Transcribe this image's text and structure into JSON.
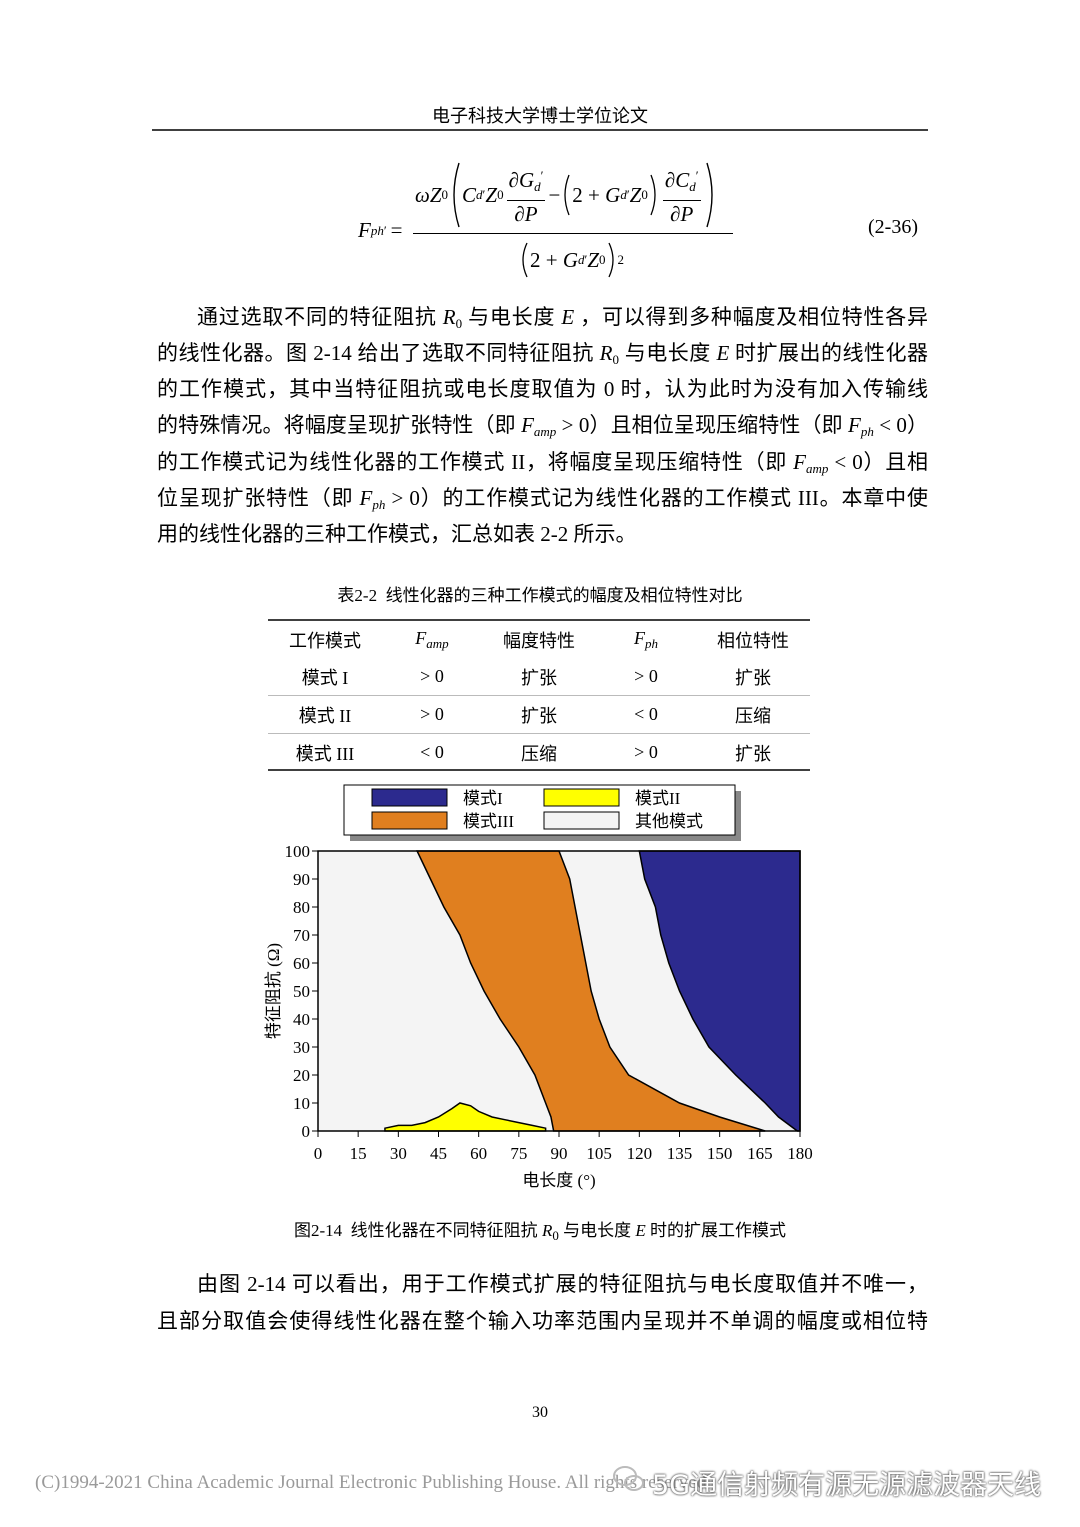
{
  "header": {
    "title": "电子科技大学博士学位论文"
  },
  "equation": {
    "lhs": [
      "F",
      "ph",
      "′",
      "="
    ],
    "numerator": [
      "ωZ",
      "0",
      "C",
      "d",
      "′",
      "Z",
      "0",
      "∂G",
      "d",
      "′",
      "∂P",
      "−",
      "2 + ",
      "G",
      "d",
      "′",
      "Z",
      "0",
      "∂C",
      "d",
      "′",
      "∂P"
    ],
    "denominator": [
      "2 + ",
      "G",
      "d",
      "′",
      "Z",
      "0",
      "2"
    ],
    "label": "(2-36)"
  },
  "paragraph_1": [
    [
      "通过选取不同的特征阻抗 ",
      "R",
      "0",
      " 与电长度 ",
      "E",
      " ，可以得到多种幅度及相位特性各异"
    ],
    [
      "的线性化器。图 2-14 给出了选取不同特征阻抗 ",
      "R",
      "0",
      " 与电长度 ",
      "E",
      " 时扩展出的线性化器"
    ],
    [
      "的工作模式，其中当特征阻抗或电长度取值为 0 时，认为此时为没有加入传输线"
    ],
    [
      "的特殊情况。将幅度呈现扩张特性（即 ",
      "F",
      "amp",
      " > 0）且相位呈现压缩特性（即 ",
      "F",
      "ph",
      " < 0）"
    ],
    [
      "的工作模式记为线性化器的工作模式 II，将幅度呈现压缩特性（即 ",
      "F",
      "amp",
      " < 0）且相"
    ],
    [
      "位呈现扩张特性（即 ",
      "F",
      "ph",
      " > 0）的工作模式记为线性化器的工作模式 III。本章中使"
    ],
    [
      "用的线性化器的三种工作模式，汇总如表 2-2 所示。"
    ]
  ],
  "table": {
    "caption": "表2-2  线性化器的三种工作模式的幅度及相位特性对比",
    "header": [
      "工作模式",
      [
        "F",
        "amp"
      ],
      "幅度特性",
      [
        "F",
        "ph"
      ],
      "相位特性"
    ],
    "rows": [
      [
        "模式 I",
        "> 0",
        "扩张",
        "> 0",
        "扩张"
      ],
      [
        "模式 II",
        "> 0",
        "扩张",
        "< 0",
        "压缩"
      ],
      [
        "模式 III",
        "< 0",
        "压缩",
        "> 0",
        "扩张"
      ]
    ]
  },
  "chart_data": {
    "type": "region-map",
    "x_label": "电长度 (°)",
    "y_label": "特征阻抗 (Ω)",
    "xlim": [
      0,
      180
    ],
    "ylim": [
      0,
      100
    ],
    "xticks": [
      0,
      15,
      30,
      45,
      60,
      75,
      90,
      105,
      120,
      135,
      150,
      165,
      180
    ],
    "yticks": [
      0,
      10,
      20,
      30,
      40,
      50,
      60,
      70,
      80,
      90,
      100
    ],
    "y_levels": [
      0,
      5,
      10,
      20,
      30,
      40,
      50,
      60,
      70,
      80,
      90,
      100
    ],
    "series": [
      {
        "name": "模式I",
        "color": "#2c2a8e",
        "x_left": [
          179,
          172,
          167,
          156,
          146,
          140,
          135,
          131,
          128,
          126,
          122,
          120
        ]
      },
      {
        "name": "模式II",
        "color": "#ffff00",
        "x": [
          25,
          30,
          35,
          40,
          45,
          50,
          53,
          57,
          60,
          65,
          70,
          75,
          80,
          85
        ],
        "y": [
          1,
          2,
          2,
          3,
          5,
          8,
          10,
          9,
          7,
          5,
          4,
          3,
          2,
          1
        ]
      },
      {
        "name": "模式III",
        "color": "#e07f1f",
        "x_left": [
          88,
          87,
          85,
          81,
          75,
          68,
          62,
          57,
          53,
          47,
          42,
          37
        ],
        "x_right": [
          167,
          150,
          135,
          116,
          109,
          105,
          102,
          100,
          98,
          96,
          94,
          90
        ]
      },
      {
        "name": "其他模式",
        "color": "#f4f4f4"
      }
    ]
  },
  "figure_caption": [
    "图2-14  线性化器在不同特征阻抗 ",
    "R",
    "0",
    " 与电长度 ",
    "E",
    " 时的扩展工作模式"
  ],
  "paragraph_2": [
    [
      "由图 2-14 可以看出，用于工作模式扩展的特征阻抗与电长度取值并不唯一，"
    ],
    [
      "且部分取值会使得线性化器在整个输入功率范围内呈现并不单调的幅度或相位特"
    ]
  ],
  "page_number": "30",
  "footer": "(C)1994-2021 China Academic Journal Electronic Publishing House. All rights reserved.",
  "watermark": "5G通信射频有源无源滤波器天线"
}
